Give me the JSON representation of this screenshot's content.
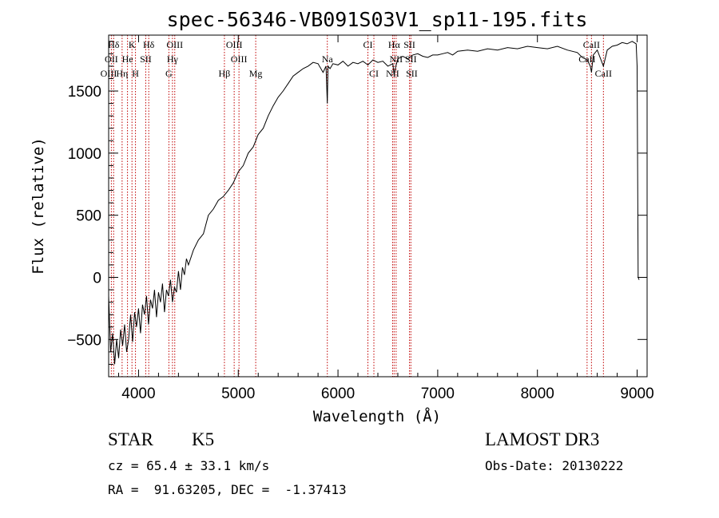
{
  "chart_data": {
    "type": "line",
    "title": "spec-56346-VB091S03V1_sp11-195.fits",
    "xlabel": "Wavelength (Å)",
    "ylabel": "Flux (relative)",
    "xlim": [
      3700,
      9100
    ],
    "ylim": [
      -800,
      1950
    ],
    "x_ticks": [
      4000,
      5000,
      6000,
      7000,
      8000,
      9000
    ],
    "y_ticks": [
      -500,
      0,
      500,
      1000,
      1500
    ],
    "series": [
      {
        "name": "flux",
        "x": [
          3700,
          3720,
          3740,
          3760,
          3780,
          3800,
          3820,
          3840,
          3860,
          3880,
          3900,
          3920,
          3940,
          3960,
          3980,
          4000,
          4020,
          4040,
          4060,
          4080,
          4100,
          4120,
          4140,
          4160,
          4180,
          4200,
          4220,
          4240,
          4260,
          4280,
          4300,
          4320,
          4340,
          4360,
          4380,
          4400,
          4420,
          4440,
          4460,
          4480,
          4500,
          4550,
          4600,
          4650,
          4700,
          4750,
          4800,
          4850,
          4900,
          4950,
          5000,
          5050,
          5100,
          5150,
          5200,
          5250,
          5300,
          5350,
          5400,
          5450,
          5500,
          5550,
          5600,
          5650,
          5700,
          5750,
          5800,
          5850,
          5880,
          5893,
          5900,
          5920,
          5950,
          6000,
          6050,
          6100,
          6150,
          6200,
          6250,
          6300,
          6350,
          6400,
          6450,
          6500,
          6550,
          6563,
          6580,
          6600,
          6650,
          6700,
          6750,
          6800,
          6850,
          6900,
          6950,
          7000,
          7050,
          7100,
          7150,
          7200,
          7300,
          7400,
          7500,
          7600,
          7700,
          7800,
          7900,
          8000,
          8100,
          8200,
          8300,
          8400,
          8450,
          8500,
          8530,
          8542,
          8560,
          8600,
          8662,
          8700,
          8750,
          8800,
          8850,
          8900,
          8950,
          8990,
          9000,
          9010,
          9020
        ],
        "y": [
          -150,
          -600,
          -450,
          -700,
          -500,
          -650,
          -420,
          -550,
          -380,
          -600,
          -500,
          -300,
          -520,
          -280,
          -400,
          -250,
          -450,
          -220,
          -300,
          -150,
          -380,
          -180,
          -250,
          -100,
          -320,
          -120,
          -200,
          -50,
          -280,
          -100,
          -150,
          -20,
          -200,
          -80,
          -120,
          50,
          -100,
          80,
          20,
          150,
          100,
          220,
          300,
          350,
          500,
          550,
          620,
          650,
          700,
          760,
          850,
          900,
          1000,
          1050,
          1150,
          1200,
          1300,
          1380,
          1450,
          1500,
          1560,
          1620,
          1650,
          1680,
          1700,
          1730,
          1720,
          1650,
          1700,
          1400,
          1700,
          1680,
          1720,
          1710,
          1740,
          1700,
          1730,
          1720,
          1740,
          1710,
          1750,
          1730,
          1740,
          1700,
          1720,
          1630,
          1700,
          1760,
          1780,
          1760,
          1790,
          1800,
          1780,
          1770,
          1790,
          1790,
          1800,
          1810,
          1790,
          1820,
          1830,
          1820,
          1840,
          1830,
          1850,
          1840,
          1860,
          1850,
          1840,
          1860,
          1830,
          1810,
          1770,
          1750,
          1700,
          1650,
          1790,
          1830,
          1700,
          1830,
          1860,
          1870,
          1890,
          1880,
          1900,
          1880,
          1700,
          0,
          -20
        ]
      }
    ],
    "spectral_lines": [
      {
        "label": "Hδ",
        "x": 3750,
        "row": 0
      },
      {
        "label": "K",
        "x": 3934,
        "row": 0
      },
      {
        "label": "Hδ",
        "x": 4102,
        "row": 0
      },
      {
        "label": "OIII",
        "x": 4363,
        "row": 0
      },
      {
        "label": "OIII",
        "x": 4959,
        "row": 0
      },
      {
        "label": "CI",
        "x": 6300,
        "row": 0
      },
      {
        "label": "Hα",
        "x": 6563,
        "row": 0
      },
      {
        "label": "SII",
        "x": 6717,
        "row": 0
      },
      {
        "label": "CaII",
        "x": 8542,
        "row": 0
      },
      {
        "label": "OII",
        "x": 3727,
        "row": 1
      },
      {
        "label": "He",
        "x": 3889,
        "row": 1
      },
      {
        "label": "SII",
        "x": 4072,
        "row": 1
      },
      {
        "label": "Hγ",
        "x": 4340,
        "row": 1
      },
      {
        "label": "OIII",
        "x": 5007,
        "row": 1
      },
      {
        "label": "Na",
        "x": 5893,
        "row": 1
      },
      {
        "label": "NII",
        "x": 6583,
        "row": 1
      },
      {
        "label": "SII",
        "x": 6731,
        "row": 1
      },
      {
        "label": "CaII",
        "x": 8498,
        "row": 1
      },
      {
        "label": "OIII",
        "x": 3700,
        "row": 2
      },
      {
        "label": "Hη",
        "x": 3835,
        "row": 2
      },
      {
        "label": "H",
        "x": 3969,
        "row": 2
      },
      {
        "label": "G",
        "x": 4304,
        "row": 2
      },
      {
        "label": "Hβ",
        "x": 4861,
        "row": 2
      },
      {
        "label": "Mg",
        "x": 5175,
        "row": 2
      },
      {
        "label": "CI",
        "x": 6360,
        "row": 2
      },
      {
        "label": "NII",
        "x": 6548,
        "row": 2
      },
      {
        "label": "SII",
        "x": 6740,
        "row": 2
      },
      {
        "label": "CaII",
        "x": 8662,
        "row": 2
      }
    ],
    "line_markers_x": [
      3727,
      3750,
      3835,
      3889,
      3934,
      3969,
      4072,
      4102,
      4304,
      4340,
      4363,
      4861,
      4959,
      5007,
      5175,
      5893,
      6300,
      6360,
      6548,
      6563,
      6583,
      6717,
      6731,
      8498,
      8542,
      8662
    ],
    "grid": false,
    "legend": "none"
  },
  "info": {
    "class": "STAR",
    "subclass": "K5",
    "cz": "cz = 65.4 ± 33.1 km/s",
    "coords": "RA =  91.63205, DEC =  -1.37413",
    "survey": "LAMOST DR3",
    "obs_date": "Obs-Date: 20130222"
  },
  "colors": {
    "line_marker": "#c00000",
    "spectrum": "#000000"
  }
}
